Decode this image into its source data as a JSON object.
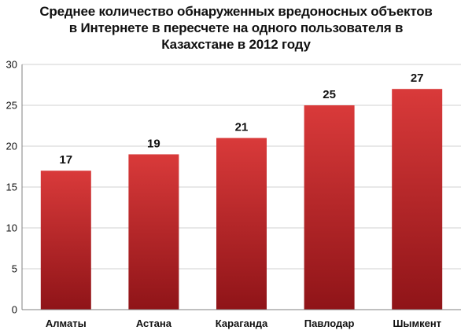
{
  "chart_data": {
    "type": "bar",
    "title_lines": [
      "Среднее количество обнаруженных вредоносных объектов",
      "в Интернете в пересчете на одного пользователя в",
      "Казахстане в 2012 году"
    ],
    "categories": [
      "Алматы",
      "Астана",
      "Караганда",
      "Павлодар",
      "Шымкент"
    ],
    "values": [
      17,
      19,
      21,
      25,
      27
    ],
    "data_labels": [
      "17",
      "19",
      "21",
      "25",
      "27"
    ],
    "xlabel": "",
    "ylabel": "",
    "ylim": [
      0,
      30
    ],
    "yticks": [
      "0",
      "5",
      "10",
      "15",
      "20",
      "25",
      "30"
    ],
    "grid": true,
    "legend": "none",
    "colors": {
      "bar_top": "#d93a3a",
      "bar_bottom": "#8f1418",
      "grid": "#d0d0d0",
      "axis": "#808080"
    }
  }
}
